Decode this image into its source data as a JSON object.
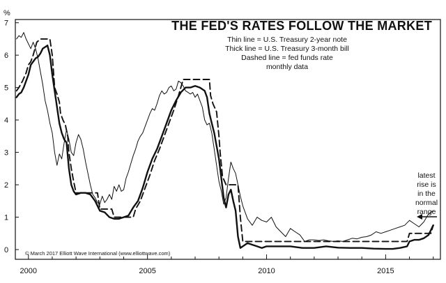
{
  "chart_data": {
    "type": "line",
    "title": "THE FED'S RATES FOLLOW THE MARKET",
    "subtitle_lines": [
      "Thin line = U.S. Treasury 2-year note",
      "Thick line = U.S. Treasury 3-month bill",
      "Dashed line = fed funds rate",
      "monthly data"
    ],
    "y_unit": "%",
    "xlim": [
      1999.45,
      2017.3
    ],
    "ylim": [
      -0.3,
      7.1
    ],
    "x_ticks": [
      2000,
      2005,
      2010,
      2015
    ],
    "y_ticks": [
      0,
      1,
      2,
      3,
      4,
      5,
      6,
      7
    ],
    "annotation": {
      "lines": [
        "latest",
        "rise is",
        "in the",
        "normal",
        "range"
      ],
      "x": 2016.9,
      "y": 1.0
    },
    "credit": "© March 2017 Elliott Wave International (www.elliottwave.com)",
    "series": [
      {
        "name": "Thin line = U.S. Treasury 2-year note",
        "style": "thin",
        "color": "#111111",
        "x": [
          1999.5,
          1999.6,
          1999.7,
          1999.8,
          1999.9,
          2000.0,
          2000.1,
          2000.2,
          2000.3,
          2000.4,
          2000.5,
          2000.6,
          2000.7,
          2000.8,
          2000.9,
          2001.0,
          2001.1,
          2001.2,
          2001.3,
          2001.4,
          2001.5,
          2001.6,
          2001.7,
          2001.8,
          2001.9,
          2002.0,
          2002.1,
          2002.2,
          2002.3,
          2002.4,
          2002.5,
          2002.6,
          2002.7,
          2002.8,
          2002.9,
          2003.0,
          2003.1,
          2003.2,
          2003.3,
          2003.4,
          2003.5,
          2003.6,
          2003.7,
          2003.8,
          2003.9,
          2004.0,
          2004.1,
          2004.2,
          2004.3,
          2004.4,
          2004.5,
          2004.6,
          2004.7,
          2004.8,
          2004.9,
          2005.0,
          2005.1,
          2005.2,
          2005.3,
          2005.4,
          2005.5,
          2005.6,
          2005.7,
          2005.8,
          2005.9,
          2006.0,
          2006.1,
          2006.2,
          2006.3,
          2006.4,
          2006.5,
          2006.6,
          2006.7,
          2006.8,
          2006.9,
          2007.0,
          2007.1,
          2007.2,
          2007.3,
          2007.4,
          2007.5,
          2007.6,
          2007.7,
          2007.8,
          2007.9,
          2008.0,
          2008.1,
          2008.2,
          2008.3,
          2008.4,
          2008.5,
          2008.6,
          2008.7,
          2008.8,
          2008.9,
          2009.0,
          2009.2,
          2009.4,
          2009.6,
          2009.8,
          2010.0,
          2010.2,
          2010.4,
          2010.6,
          2010.8,
          2011.0,
          2011.2,
          2011.4,
          2011.6,
          2011.8,
          2012.0,
          2012.2,
          2012.4,
          2012.6,
          2012.8,
          2013.0,
          2013.2,
          2013.4,
          2013.6,
          2013.8,
          2014.0,
          2014.2,
          2014.4,
          2014.6,
          2014.8,
          2015.0,
          2015.2,
          2015.4,
          2015.6,
          2015.8,
          2016.0,
          2016.2,
          2016.4,
          2016.6,
          2016.8,
          2017.0
        ],
        "values": [
          6.5,
          6.6,
          6.55,
          6.7,
          6.5,
          6.35,
          6.2,
          6.4,
          6.2,
          5.9,
          5.5,
          5.1,
          4.6,
          4.3,
          3.9,
          3.6,
          3.0,
          2.6,
          2.95,
          2.8,
          3.3,
          3.7,
          3.4,
          3.0,
          2.9,
          3.3,
          3.55,
          3.4,
          3.1,
          2.7,
          2.35,
          2.0,
          1.7,
          1.6,
          1.45,
          1.4,
          1.65,
          1.45,
          1.55,
          1.7,
          1.55,
          1.95,
          1.8,
          2.0,
          1.8,
          1.85,
          2.2,
          2.4,
          2.65,
          2.9,
          3.1,
          3.35,
          3.5,
          3.6,
          3.8,
          4.0,
          4.2,
          4.35,
          4.3,
          4.5,
          4.75,
          4.9,
          4.8,
          4.85,
          5.0,
          5.05,
          4.9,
          4.95,
          5.2,
          5.15,
          5.05,
          4.9,
          4.85,
          4.8,
          4.85,
          4.7,
          4.8,
          4.6,
          4.4,
          4.0,
          3.85,
          3.9,
          3.6,
          3.1,
          2.6,
          2.1,
          1.8,
          1.4,
          1.6,
          2.2,
          2.7,
          2.5,
          2.35,
          2.0,
          1.65,
          1.35,
          0.95,
          0.75,
          1.0,
          0.9,
          0.85,
          1.0,
          0.7,
          0.55,
          0.4,
          0.65,
          0.55,
          0.45,
          0.25,
          0.3,
          0.3,
          0.28,
          0.3,
          0.27,
          0.25,
          0.27,
          0.25,
          0.3,
          0.35,
          0.33,
          0.38,
          0.4,
          0.45,
          0.55,
          0.5,
          0.55,
          0.6,
          0.65,
          0.7,
          0.75,
          0.9,
          0.8,
          0.7,
          0.85,
          1.1,
          1.2
        ]
      },
      {
        "name": "Thick line = U.S. Treasury 3-month bill",
        "style": "thick",
        "color": "#111111",
        "x": [
          1999.5,
          1999.6,
          1999.7,
          1999.8,
          1999.9,
          2000.0,
          2000.1,
          2000.2,
          2000.3,
          2000.4,
          2000.5,
          2000.6,
          2000.7,
          2000.8,
          2000.9,
          2001.0,
          2001.1,
          2001.2,
          2001.3,
          2001.4,
          2001.5,
          2001.6,
          2001.7,
          2001.8,
          2001.9,
          2002.0,
          2002.2,
          2002.4,
          2002.6,
          2002.8,
          2003.0,
          2003.2,
          2003.4,
          2003.6,
          2003.8,
          2004.0,
          2004.2,
          2004.4,
          2004.6,
          2004.8,
          2005.0,
          2005.2,
          2005.4,
          2005.6,
          2005.8,
          2006.0,
          2006.2,
          2006.4,
          2006.6,
          2006.8,
          2007.0,
          2007.2,
          2007.4,
          2007.5,
          2007.6,
          2007.7,
          2007.8,
          2007.9,
          2008.0,
          2008.1,
          2008.2,
          2008.3,
          2008.4,
          2008.5,
          2008.6,
          2008.7,
          2008.8,
          2008.9,
          2009.0,
          2009.2,
          2009.4,
          2009.6,
          2009.8,
          2010.0,
          2010.5,
          2011.0,
          2011.5,
          2012.0,
          2012.5,
          2013.0,
          2013.5,
          2014.0,
          2014.5,
          2015.0,
          2015.3,
          2015.6,
          2015.9,
          2016.0,
          2016.2,
          2016.4,
          2016.6,
          2016.8,
          2017.0
        ],
        "values": [
          4.7,
          4.8,
          4.85,
          5.0,
          5.2,
          5.4,
          5.7,
          5.8,
          5.9,
          5.95,
          6.05,
          6.2,
          6.25,
          6.3,
          6.0,
          5.4,
          4.9,
          4.4,
          3.9,
          3.6,
          3.4,
          3.3,
          2.5,
          2.0,
          1.8,
          1.7,
          1.75,
          1.75,
          1.7,
          1.5,
          1.2,
          1.15,
          1.0,
          0.95,
          0.95,
          1.0,
          1.05,
          1.3,
          1.5,
          1.9,
          2.4,
          2.8,
          3.1,
          3.5,
          3.9,
          4.3,
          4.6,
          4.85,
          5.0,
          5.0,
          5.05,
          5.0,
          4.9,
          4.7,
          4.2,
          3.9,
          3.6,
          3.2,
          2.8,
          2.2,
          1.6,
          1.3,
          1.7,
          1.85,
          1.5,
          1.2,
          0.4,
          0.05,
          0.1,
          0.2,
          0.15,
          0.1,
          0.05,
          0.1,
          0.1,
          0.1,
          0.05,
          0.05,
          0.1,
          0.06,
          0.05,
          0.05,
          0.03,
          0.02,
          0.02,
          0.05,
          0.1,
          0.25,
          0.3,
          0.3,
          0.35,
          0.45,
          0.75
        ]
      },
      {
        "name": "Dashed line = fed funds rate",
        "style": "dashed",
        "color": "#111111",
        "x": [
          1999.5,
          1999.6,
          1999.75,
          1999.9,
          2000.0,
          2000.1,
          2000.2,
          2000.35,
          2000.5,
          2000.9,
          2001.0,
          2001.05,
          2001.1,
          2001.2,
          2001.3,
          2001.35,
          2001.45,
          2001.55,
          2001.65,
          2001.7,
          2001.8,
          2001.9,
          2002.0,
          2002.9,
          2003.0,
          2003.5,
          2003.6,
          2004.4,
          2004.5,
          2004.7,
          2004.9,
          2005.1,
          2005.3,
          2005.5,
          2005.7,
          2005.9,
          2006.1,
          2006.3,
          2006.5,
          2007.6,
          2007.65,
          2007.75,
          2007.9,
          2008.0,
          2008.05,
          2008.15,
          2008.3,
          2008.8,
          2008.9,
          2009.0,
          2015.9,
          2016.0,
          2016.9,
          2017.0
        ],
        "values": [
          4.9,
          5.0,
          5.2,
          5.45,
          5.7,
          5.8,
          6.0,
          6.4,
          6.5,
          6.5,
          6.0,
          5.5,
          5.0,
          4.8,
          4.55,
          4.2,
          4.0,
          3.85,
          3.5,
          3.0,
          2.5,
          2.1,
          1.75,
          1.75,
          1.25,
          1.25,
          1.0,
          1.0,
          1.25,
          1.5,
          1.9,
          2.3,
          2.75,
          3.1,
          3.5,
          3.9,
          4.3,
          4.75,
          5.25,
          5.25,
          4.75,
          4.5,
          4.25,
          3.5,
          3.0,
          2.25,
          2.0,
          2.0,
          1.0,
          0.25,
          0.25,
          0.5,
          0.5,
          0.75
        ]
      }
    ]
  }
}
